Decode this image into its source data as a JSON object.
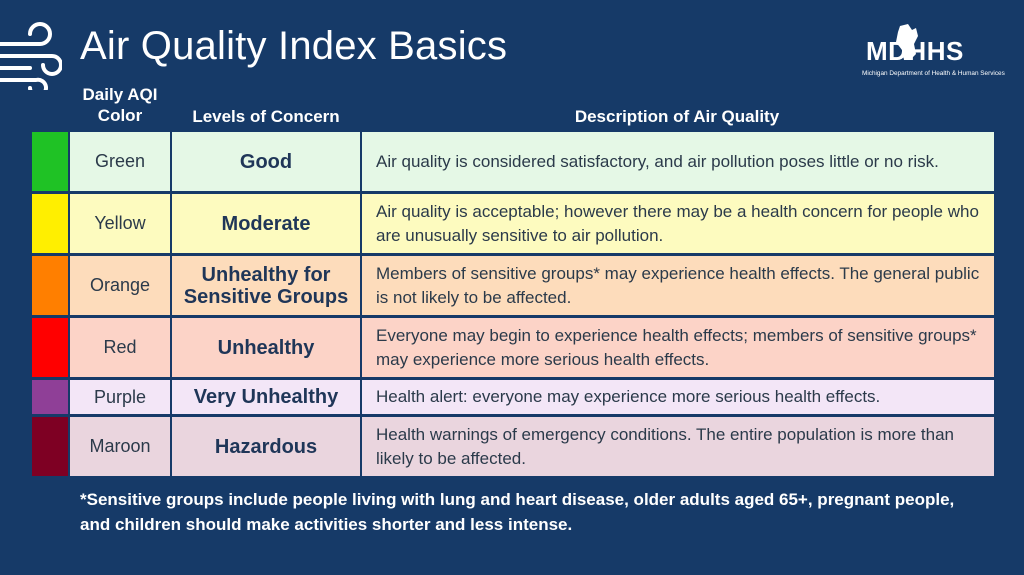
{
  "header": {
    "title": "Air Quality Index Basics",
    "logo_text": "MDHHS",
    "logo_subtext": "Michigan Department of Health & Human Services"
  },
  "columns": {
    "color": "Daily AQI Color",
    "level": "Levels of Concern",
    "description": "Description of Air Quality"
  },
  "rows": [
    {
      "color_name": "Green",
      "swatch": "#1fc225",
      "tint": "#e5f8e6",
      "level": "Good",
      "description": "Air quality is considered satisfactory, and air pollution poses little or no risk."
    },
    {
      "color_name": "Yellow",
      "swatch": "#ffef00",
      "tint": "#fdfbbf",
      "level": "Moderate",
      "description": "Air quality is acceptable; however there may be a health concern for people who are unusually sensitive to air pollution."
    },
    {
      "color_name": "Orange",
      "swatch": "#ff7f00",
      "tint": "#fddcbb",
      "level": "Unhealthy for Sensitive Groups",
      "description": "Members of sensitive groups* may experience health effects. The general public is not likely to be affected."
    },
    {
      "color_name": "Red",
      "swatch": "#ff0000",
      "tint": "#fcd3c7",
      "level": "Unhealthy",
      "description": "Everyone may begin to experience health effects; members of sensitive groups* may experience more serious health effects."
    },
    {
      "color_name": "Purple",
      "swatch": "#8f3f97",
      "tint": "#f3e6f7",
      "level": "Very Unhealthy",
      "description": "Health alert: everyone may experience more serious health effects."
    },
    {
      "color_name": "Maroon",
      "swatch": "#7e0023",
      "tint": "#ead5de",
      "level": "Hazardous",
      "description": "Health warnings of emergency conditions. The entire population is more than likely to be affected."
    }
  ],
  "footnote": "*Sensitive groups include people living with lung and heart disease, older adults aged 65+, pregnant people, and children should make activities shorter and less intense."
}
